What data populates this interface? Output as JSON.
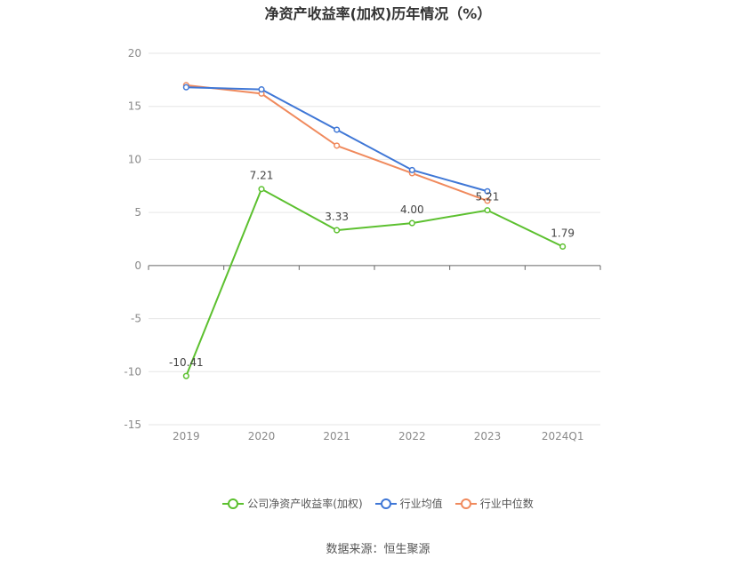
{
  "chart_data": {
    "type": "line",
    "title": "净资产收益率(加权)历年情况（%）",
    "categories": [
      "2019",
      "2020",
      "2021",
      "2022",
      "2023",
      "2024Q1"
    ],
    "ylim": [
      -15,
      20
    ],
    "yticks": [
      20,
      15,
      10,
      5,
      0,
      -5,
      -10,
      -15
    ],
    "grid": true,
    "legend_position": "bottom",
    "series": [
      {
        "name": "公司净资产收益率(加权)",
        "color": "#5cc02f",
        "values": [
          -10.41,
          7.21,
          3.33,
          4.0,
          5.21,
          1.79
        ],
        "labels": [
          "-10.41",
          "7.21",
          "3.33",
          "4.00",
          "5.21",
          "1.79"
        ]
      },
      {
        "name": "行业均值",
        "color": "#3f77d6",
        "values": [
          16.8,
          16.6,
          12.8,
          9.0,
          7.0,
          null
        ]
      },
      {
        "name": "行业中位数",
        "color": "#f08a5d",
        "values": [
          17.0,
          16.2,
          11.3,
          8.7,
          6.1,
          null
        ]
      }
    ]
  },
  "source": "数据来源：恒生聚源"
}
